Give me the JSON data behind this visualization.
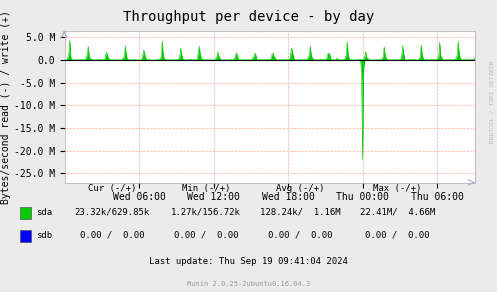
{
  "title": "Throughput per device - by day",
  "ylabel": "Bytes/second read (-) / write (+)",
  "plot_bg_color": "#FFFFFF",
  "grid_color": "#FF8080",
  "ylim": [
    -27000000,
    6500000
  ],
  "yticks": [
    -25000000,
    -20000000,
    -15000000,
    -10000000,
    -5000000,
    0,
    5000000
  ],
  "ytick_labels": [
    "-25.0 M",
    "-20.0 M",
    "-15.0 M",
    "-10.0 M",
    "-5.0 M",
    "0.0",
    "5.0 M"
  ],
  "xtick_labels": [
    "Wed 06:00",
    "Wed 12:00",
    "Wed 18:00",
    "Thu 00:00",
    "Thu 06:00"
  ],
  "title_fontsize": 10,
  "axis_fontsize": 7,
  "tick_fontsize": 7,
  "sda_color": "#00CC00",
  "sdb_color": "#0000FF",
  "zero_line_color": "#000000",
  "outer_bg_color": "#EBEBEB",
  "right_label": "RRDTOOL / TOBI OETIKER",
  "footer_last": "Last update: Thu Sep 19 09:41:04 2024",
  "footer_munin": "Munin 2.0.25-2ubuntu0.16.04.3",
  "total_hours": 33,
  "xtick_hours": [
    6,
    12,
    18,
    24,
    30
  ]
}
